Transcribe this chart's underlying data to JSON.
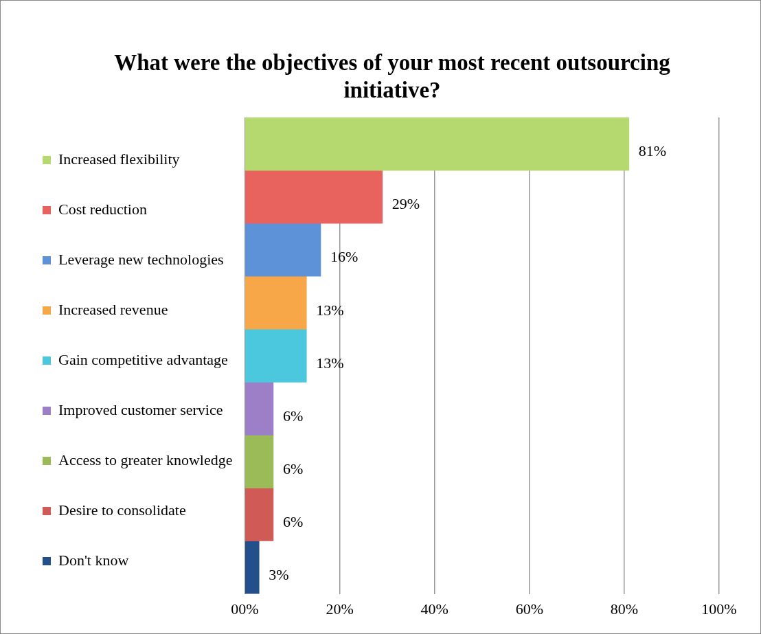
{
  "chart_data": {
    "type": "bar",
    "orientation": "horizontal",
    "title": "What were the objectives of your most recent outsourcing initiative?",
    "categories": [
      null
    ],
    "series": [
      {
        "name": "Increased flexibility",
        "color": "#b5d96e",
        "values": [
          81
        ],
        "value_labels": [
          "81%"
        ]
      },
      {
        "name": "Cost reduction",
        "color": "#e8625e",
        "values": [
          29
        ],
        "value_labels": [
          "29%"
        ]
      },
      {
        "name": "Leverage new technologies",
        "color": "#5d92d8",
        "values": [
          16
        ],
        "value_labels": [
          "16%"
        ]
      },
      {
        "name": "Increased revenue",
        "color": "#f7a748",
        "values": [
          13
        ],
        "value_labels": [
          "13%"
        ]
      },
      {
        "name": "Gain competitive advantage",
        "color": "#4cc8de",
        "values": [
          13
        ],
        "value_labels": [
          "13%"
        ]
      },
      {
        "name": "Improved customer service",
        "color": "#9c7fc6",
        "values": [
          6
        ],
        "value_labels": [
          "6%"
        ]
      },
      {
        "name": "Access to greater knowledge",
        "color": "#9bbb59",
        "values": [
          6
        ],
        "value_labels": [
          "6%"
        ]
      },
      {
        "name": "Desire to consolidate",
        "color": "#cf5a56",
        "values": [
          6
        ],
        "value_labels": [
          "6%"
        ]
      },
      {
        "name": "Don't know",
        "color": "#23508a",
        "values": [
          3
        ],
        "value_labels": [
          "3%"
        ]
      }
    ],
    "xlim": [
      0,
      100
    ],
    "xticks": [
      {
        "value": 0,
        "label": "00%"
      },
      {
        "value": 20,
        "label": "20%"
      },
      {
        "value": 40,
        "label": "40%"
      },
      {
        "value": 60,
        "label": "60%"
      },
      {
        "value": 80,
        "label": "80%"
      },
      {
        "value": 100,
        "label": "100%"
      }
    ],
    "grid": "x",
    "legend": "left",
    "tick_labels": "x"
  }
}
